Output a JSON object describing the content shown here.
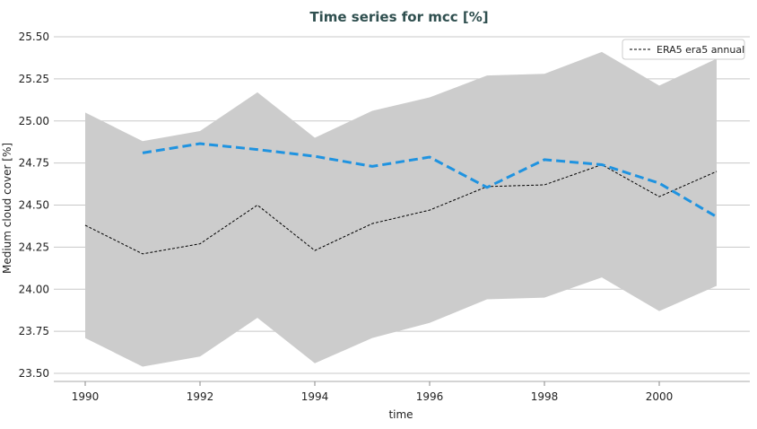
{
  "chart_data": {
    "type": "line",
    "title": "Time series for mcc [%]",
    "xlabel": "time",
    "ylabel": "Medium cloud cover [%]",
    "xlim": [
      1989.4,
      2002.5
    ],
    "ylim": [
      23.48,
      25.52
    ],
    "grid": "horizontal",
    "legend_placement": "top-right",
    "x_ticks": [
      1990,
      1992,
      1994,
      1996,
      1998,
      2000
    ],
    "y_ticks": [
      "23.50",
      "23.75",
      "24.00",
      "24.25",
      "24.50",
      "24.75",
      "25.00",
      "25.25",
      "25.50"
    ],
    "band": {
      "color": "#cccccc",
      "x": [
        1990,
        1991,
        1992,
        1993,
        1994,
        1995,
        1996,
        1997,
        1998,
        1999,
        2000,
        2001
      ],
      "upper": [
        25.05,
        24.88,
        24.94,
        25.17,
        24.9,
        25.06,
        25.14,
        25.27,
        25.28,
        25.41,
        25.21,
        25.37
      ],
      "lower": [
        23.71,
        23.54,
        23.6,
        23.83,
        23.56,
        23.71,
        23.8,
        23.94,
        23.95,
        24.07,
        23.87,
        24.02
      ]
    },
    "series": [
      {
        "name": "ERA5 era5 annual",
        "color": "#000000",
        "style": "dashed-thin",
        "x": [
          1990,
          1991,
          1992,
          1993,
          1994,
          1995,
          1996,
          1997,
          1998,
          1999,
          2000,
          2001
        ],
        "y": [
          24.38,
          24.21,
          24.27,
          24.5,
          24.23,
          24.39,
          24.47,
          24.61,
          24.62,
          24.74,
          24.55,
          24.7
        ]
      },
      {
        "color": "#1f93e0",
        "style": "dashed-thick",
        "x": [
          1991,
          1992,
          1993,
          1994,
          1995,
          1996,
          1997,
          1998,
          1999,
          2000,
          2001
        ],
        "y": [
          24.81,
          24.865,
          24.83,
          24.79,
          24.73,
          24.785,
          24.605,
          24.77,
          24.74,
          24.63,
          24.43
        ]
      }
    ]
  }
}
